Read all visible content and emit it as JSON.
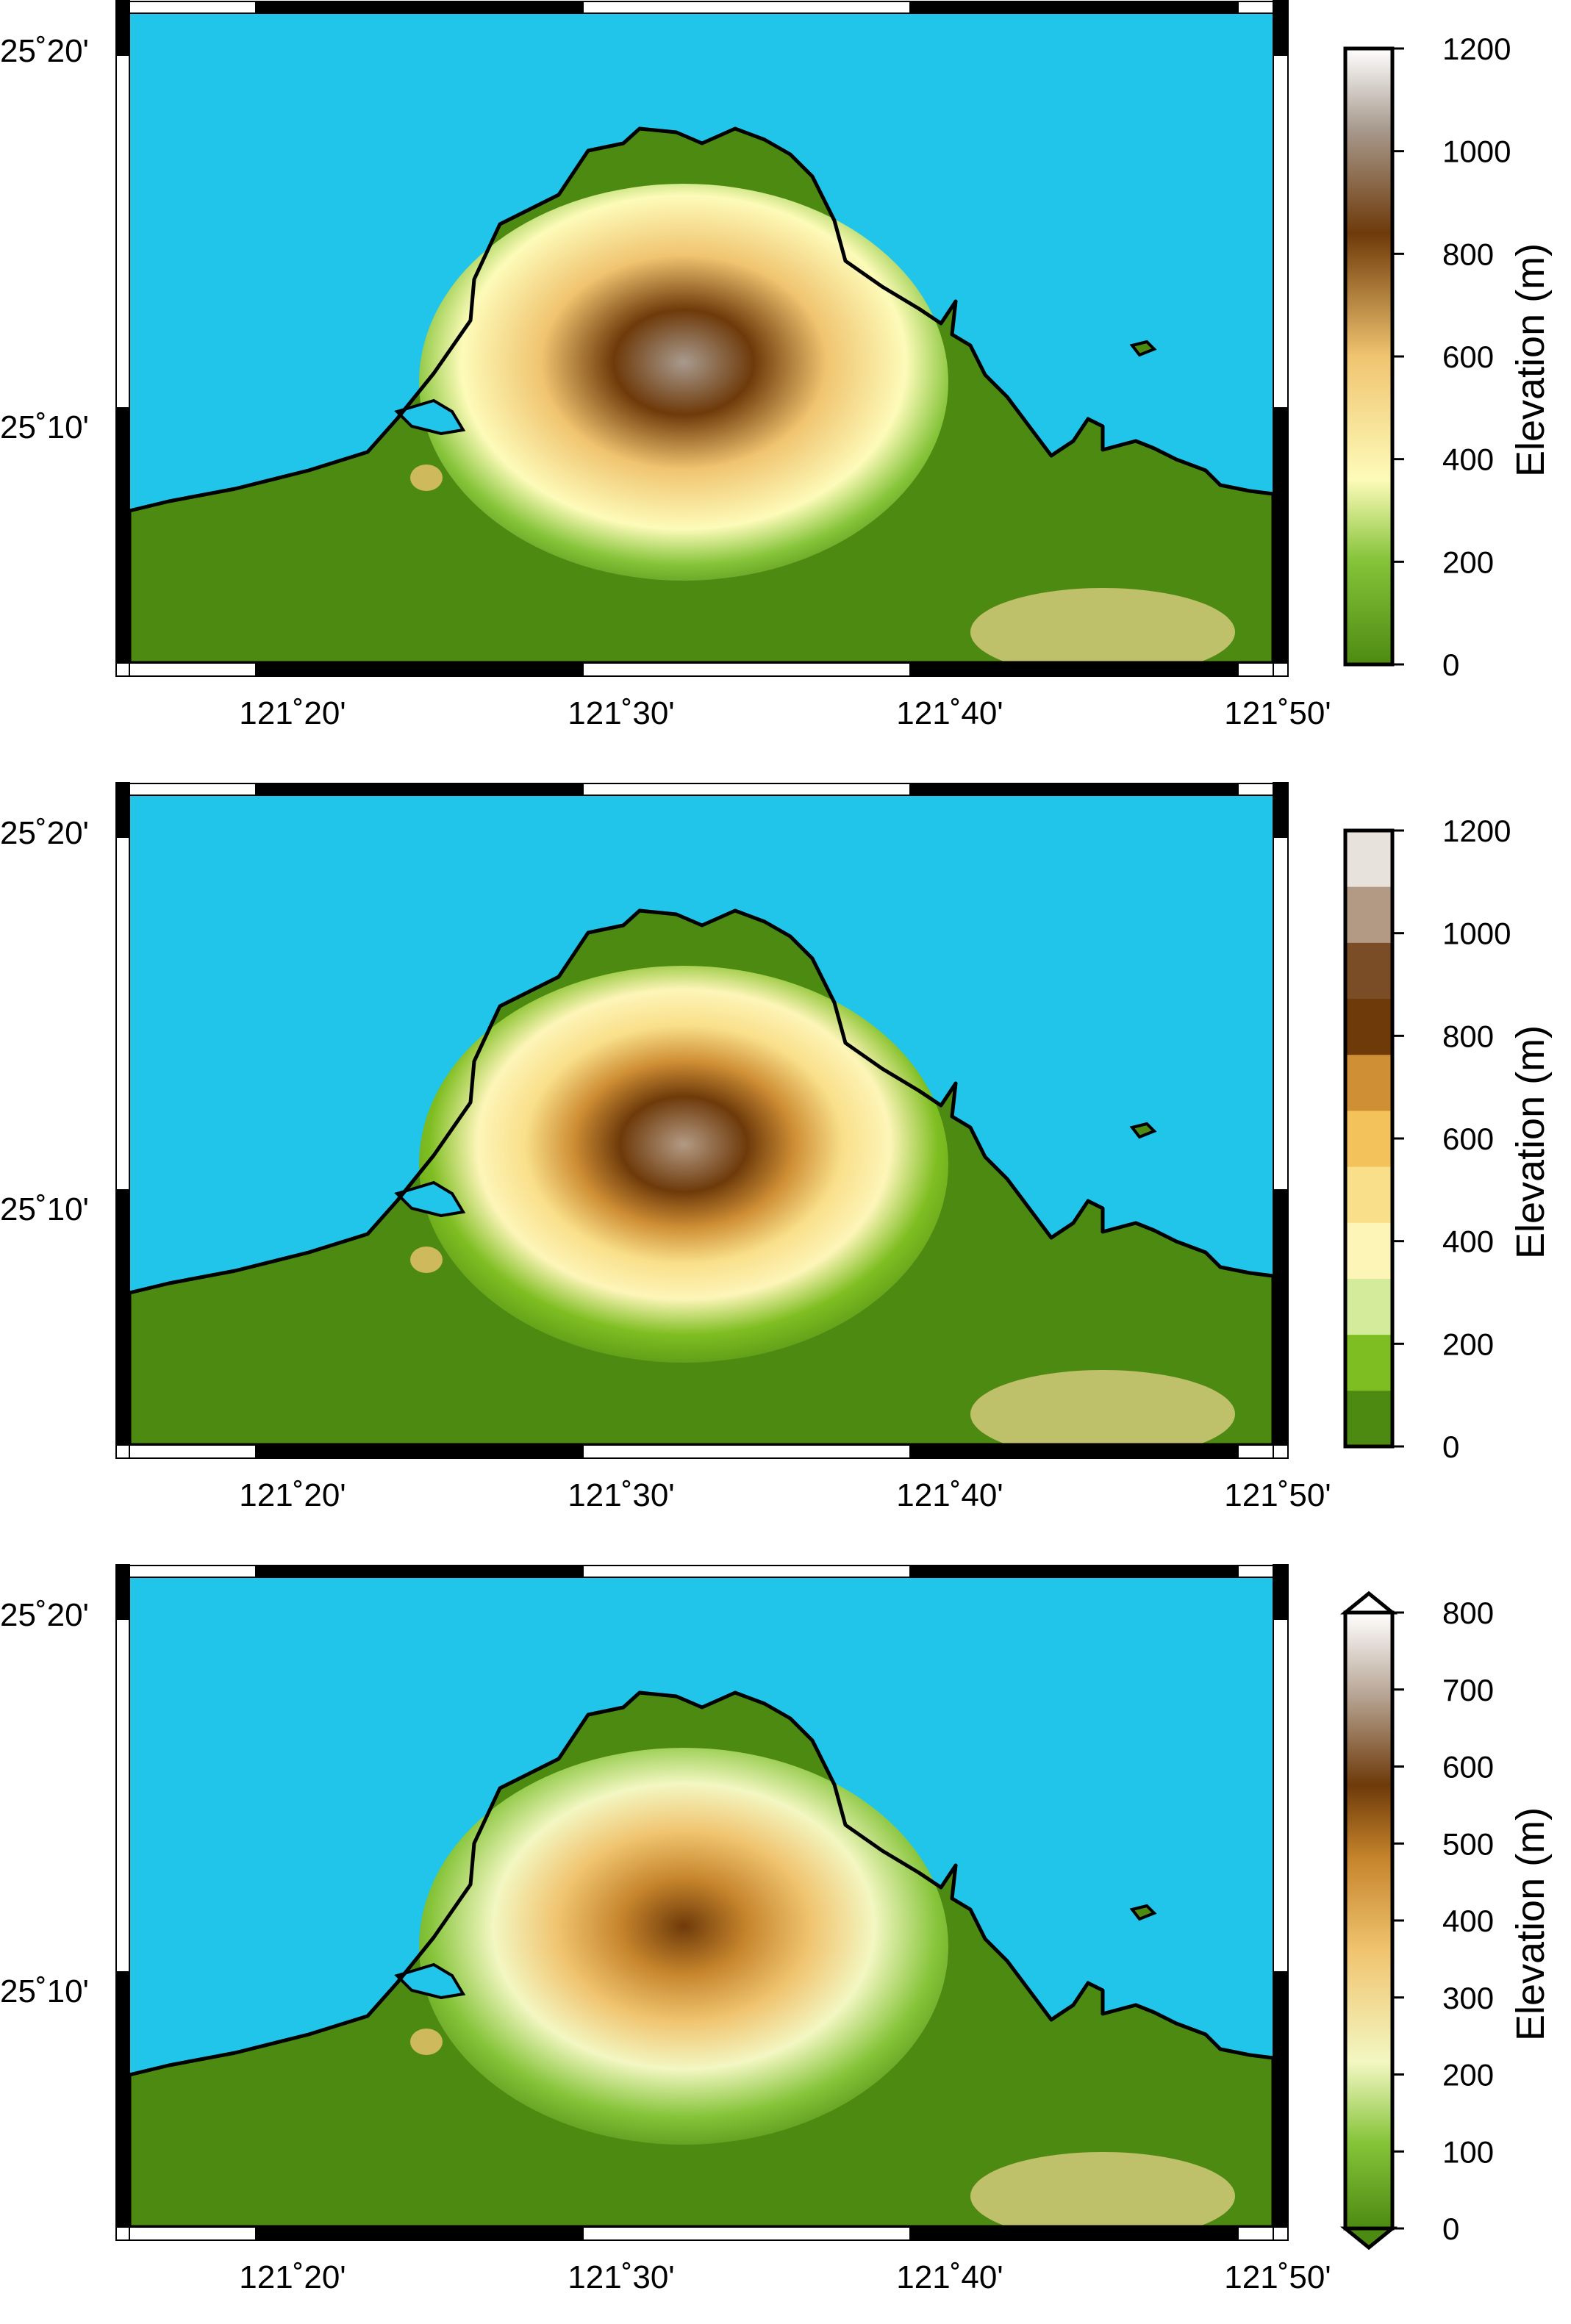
{
  "colors": {
    "sea": "#22c5ea",
    "lowland": "#4d8a12",
    "coastline": "#000000",
    "frame_dark": "#000000",
    "frame_light": "#ffffff"
  },
  "axes": {
    "lon_ticks": [
      "121˚20'",
      "121˚30'",
      "121˚40'",
      "121˚50'"
    ],
    "lat_ticks": [
      "25˚20'",
      "25˚10'"
    ]
  },
  "panels": [
    {
      "colorbar": {
        "label": "Elevation (m)",
        "style": "continuous",
        "ticks": [
          "1200",
          "1000",
          "800",
          "600",
          "400",
          "200",
          "0"
        ],
        "range": [
          0,
          1200
        ],
        "triangles": false,
        "stops": [
          "#4d8a12",
          "#86c43a",
          "#fdfbb9",
          "#f0c470",
          "#6e3a0a",
          "#a89a8e",
          "#ffffff"
        ]
      }
    },
    {
      "colorbar": {
        "label": "Elevation (m)",
        "style": "discrete",
        "ticks": [
          "1200",
          "1000",
          "800",
          "600",
          "400",
          "200",
          "0"
        ],
        "range": [
          0,
          1200
        ],
        "triangles": false,
        "bands": [
          "#4d8a12",
          "#7fbe22",
          "#d5eb9c",
          "#fdf5b8",
          "#f9df8a",
          "#f3c25a",
          "#cf8f35",
          "#6e3a0a",
          "#7b4d26",
          "#b39a84",
          "#e8e2dd"
        ]
      }
    },
    {
      "colorbar": {
        "label": "Elevation (m)",
        "style": "continuous",
        "ticks": [
          "800",
          "700",
          "600",
          "500",
          "400",
          "300",
          "200",
          "100",
          "0"
        ],
        "range": [
          0,
          800
        ],
        "triangles": true,
        "stops": [
          "#4d8a12",
          "#86c43a",
          "#f3f7c2",
          "#f0c470",
          "#c6852c",
          "#6e3a0a",
          "#b9a898",
          "#ffffff"
        ]
      }
    }
  ]
}
